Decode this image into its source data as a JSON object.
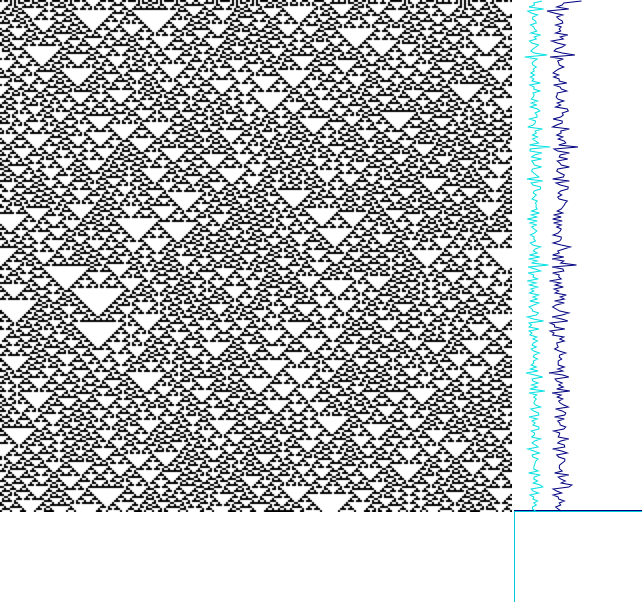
{
  "figure": {
    "kind": "cellular-automaton-spacetime-with-density-profiles",
    "colors": {
      "background": "#ffffff",
      "cell_on": "#000000",
      "cell_off": "#ffffff",
      "profile_primary": "#000080",
      "profile_secondary": "#00e0e0",
      "axis": "#00c8d8"
    }
  },
  "automaton": {
    "rule_family": "elementary-1d",
    "grid_cells": 256,
    "generations": 256,
    "initial_state": "random",
    "boundary": "periodic"
  },
  "chart_data": {
    "type": "line",
    "title": "",
    "xlabel": "",
    "ylabel": "",
    "series": [
      {
        "name": "",
        "color": "#000080",
        "orientation": "vertical",
        "per_generation": true
      },
      {
        "name": "",
        "color": "#00e0e0",
        "orientation": "vertical",
        "per_generation": true
      }
    ]
  }
}
